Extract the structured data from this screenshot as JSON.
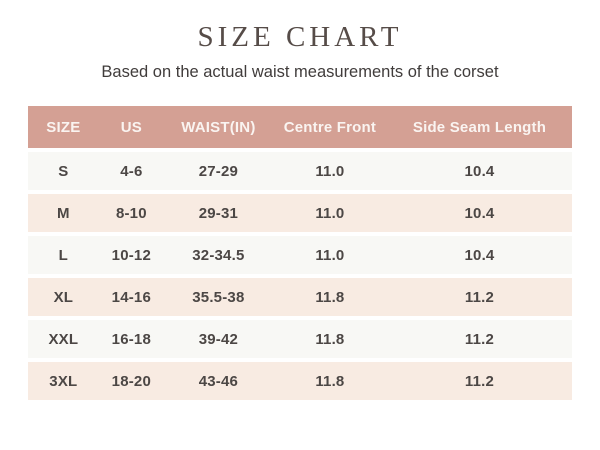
{
  "page": {
    "title": "SIZE CHART",
    "subtitle": "Based on the actual waist measurements of the corset"
  },
  "colors": {
    "header_bg": "#d4a094",
    "header_text": "#faf4f1",
    "row_light": "#f8f8f5",
    "row_pink": "#f8ebe2",
    "body_text": "#4c4745",
    "title_text": "#564c48",
    "page_bg": "#ffffff"
  },
  "chart_data": {
    "type": "table",
    "title": "SIZE CHART",
    "subtitle": "Based on the actual waist measurements of the corset",
    "columns": [
      "SIZE",
      "US",
      "WAIST(IN)",
      "Centre Front",
      "Side Seam Length"
    ],
    "rows": [
      [
        "S",
        "4-6",
        "27-29",
        "11.0",
        "10.4"
      ],
      [
        "M",
        "8-10",
        "29-31",
        "11.0",
        "10.4"
      ],
      [
        "L",
        "10-12",
        "32-34.5",
        "11.0",
        "10.4"
      ],
      [
        "XL",
        "14-16",
        "35.5-38",
        "11.8",
        "11.2"
      ],
      [
        "XXL",
        "16-18",
        "39-42",
        "11.8",
        "11.2"
      ],
      [
        "3XL",
        "18-20",
        "43-46",
        "11.8",
        "11.2"
      ]
    ],
    "layout": {
      "header_position": "top",
      "row_striping": "alternating light/pink starting light",
      "grid": false
    }
  }
}
